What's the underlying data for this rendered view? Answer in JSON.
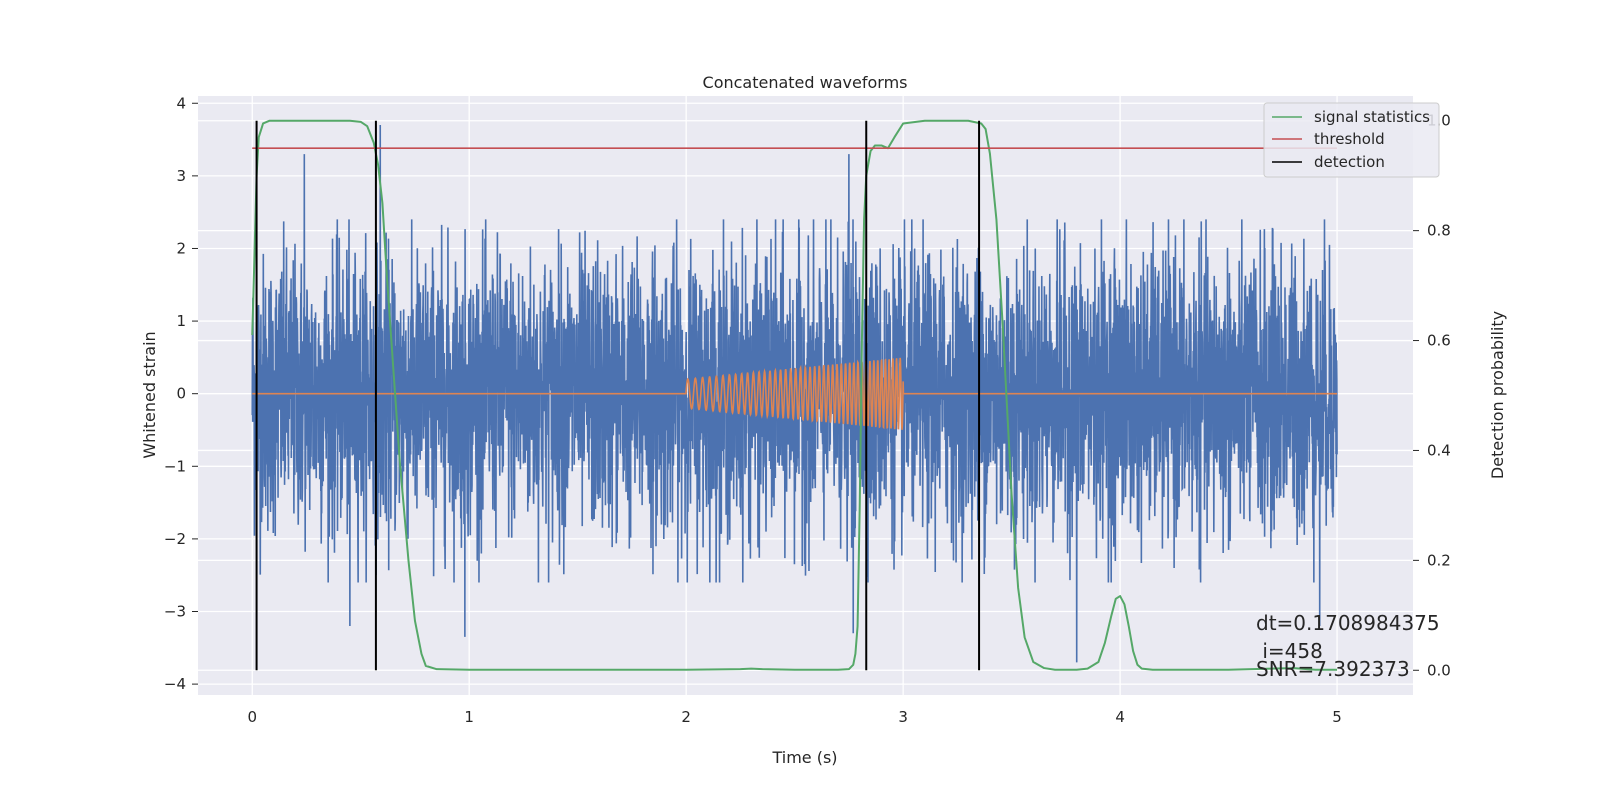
{
  "chart_data": {
    "type": "line",
    "title": "Concatenated waveforms",
    "xlabel": "Time (s)",
    "ylabel_left": "Whitened strain",
    "ylabel_right": "Detection probability",
    "xlim": [
      -0.25,
      5.35
    ],
    "ylim_left": [
      -4.15,
      4.1
    ],
    "ylim_right": [
      -0.045,
      1.045
    ],
    "x_ticks": [
      0,
      1,
      2,
      3,
      4,
      5
    ],
    "x_tick_labels": [
      "0",
      "1",
      "2",
      "3",
      "4",
      "5"
    ],
    "left_ticks": [
      -4,
      -3,
      -2,
      -1,
      0,
      1,
      2,
      3,
      4
    ],
    "left_tick_labels": [
      "−4",
      "−3",
      "−2",
      "−1",
      "0",
      "1",
      "2",
      "3",
      "4"
    ],
    "right_ticks": [
      0.0,
      0.2,
      0.4,
      0.6,
      0.8,
      1.0
    ],
    "right_tick_labels": [
      "0.0",
      "0.2",
      "0.4",
      "0.6",
      "0.8",
      "1.0"
    ],
    "grid": true,
    "legend_position": "top-right",
    "legend": [
      "signal statistics",
      "threshold",
      "detection"
    ],
    "series": [
      {
        "name": "",
        "axis": "left",
        "color": "#4c72b0",
        "description_type": "whitened noise strain",
        "x_range": [
          0,
          5
        ],
        "amplitude_sd": 0.95,
        "typical_max": 2.2,
        "peaks": [
          {
            "x": 0.24,
            "y": 3.3
          },
          {
            "x": 0.59,
            "y": 3.7
          },
          {
            "x": 0.45,
            "y": -3.2
          },
          {
            "x": 0.98,
            "y": -3.35
          },
          {
            "x": 2.75,
            "y": 3.3
          },
          {
            "x": 2.77,
            "y": -3.3
          },
          {
            "x": 3.8,
            "y": -3.7
          },
          {
            "x": 4.92,
            "y": -3.2
          }
        ]
      },
      {
        "name": "",
        "axis": "left",
        "color": "#dd8452",
        "description_type": "injected chirp",
        "x_range": [
          0,
          5
        ],
        "chirp_start": 2.0,
        "chirp_end": 3.0,
        "amp_start": 0.2,
        "amp_end": 0.5,
        "freq_start": 28,
        "freq_end": 60
      },
      {
        "name": "signal statistics",
        "axis": "right",
        "color": "#55a868",
        "x": [
          0.0,
          0.01,
          0.02,
          0.03,
          0.05,
          0.08,
          0.15,
          0.3,
          0.45,
          0.5,
          0.53,
          0.56,
          0.58,
          0.6,
          0.62,
          0.65,
          0.68,
          0.72,
          0.75,
          0.78,
          0.8,
          0.85,
          1.0,
          1.5,
          2.0,
          2.25,
          2.3,
          2.35,
          2.5,
          2.7,
          2.75,
          2.77,
          2.78,
          2.79,
          2.8,
          2.81,
          2.82,
          2.83,
          2.85,
          2.87,
          2.9,
          2.93,
          2.96,
          3.0,
          3.1,
          3.2,
          3.3,
          3.36,
          3.38,
          3.4,
          3.43,
          3.46,
          3.5,
          3.53,
          3.56,
          3.6,
          3.65,
          3.7,
          3.8,
          3.85,
          3.9,
          3.93,
          3.96,
          3.98,
          4.0,
          4.02,
          4.04,
          4.06,
          4.08,
          4.1,
          4.15,
          4.25,
          4.5,
          4.8,
          4.9,
          5.0
        ],
        "y": [
          0.61,
          0.75,
          0.9,
          0.97,
          0.995,
          1.0,
          1.0,
          1.0,
          1.0,
          0.998,
          0.99,
          0.96,
          0.92,
          0.85,
          0.72,
          0.55,
          0.38,
          0.2,
          0.09,
          0.03,
          0.008,
          0.002,
          0.001,
          0.001,
          0.001,
          0.002,
          0.003,
          0.002,
          0.001,
          0.001,
          0.002,
          0.01,
          0.03,
          0.08,
          0.3,
          0.6,
          0.82,
          0.9,
          0.945,
          0.955,
          0.955,
          0.95,
          0.97,
          0.995,
          1.0,
          1.0,
          1.0,
          0.995,
          0.985,
          0.94,
          0.82,
          0.62,
          0.32,
          0.15,
          0.06,
          0.015,
          0.004,
          0.001,
          0.001,
          0.003,
          0.015,
          0.05,
          0.1,
          0.13,
          0.135,
          0.12,
          0.08,
          0.035,
          0.01,
          0.003,
          0.001,
          0.001,
          0.001,
          0.004,
          0.001,
          0.001
        ]
      },
      {
        "name": "threshold",
        "axis": "right",
        "color": "#c44e52",
        "x": [
          0,
          5
        ],
        "y": [
          0.95,
          0.95
        ]
      }
    ],
    "detections": {
      "name": "detection",
      "color": "#000000",
      "x": [
        0.02,
        0.57,
        2.83,
        3.35
      ],
      "ymin": 0.0,
      "ymax": 1.0
    },
    "annotations": [
      "dt=0.1708984375",
      " i=458",
      "SNR=7.392373"
    ]
  }
}
